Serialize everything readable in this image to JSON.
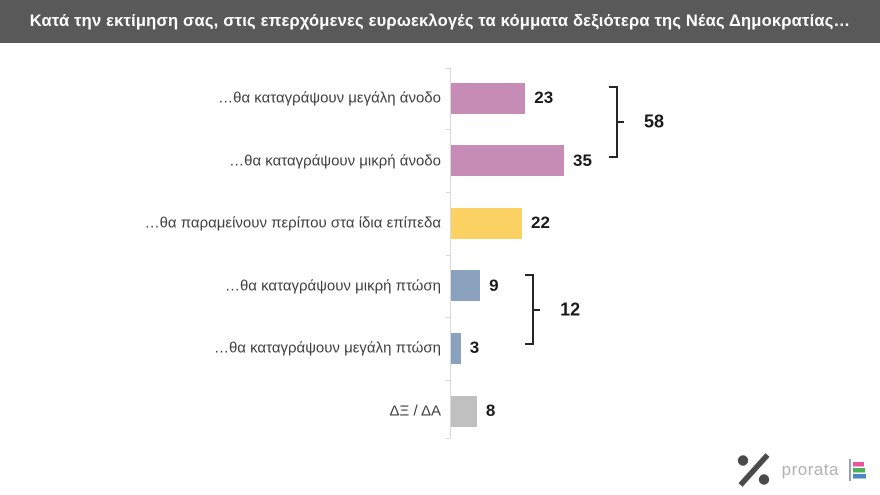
{
  "header": {
    "title": "Κατά την εκτίμηση σας, στις επερχόμενες ευρωεκλογές τα κόμματα δεξιότερα της Νέας Δημοκρατίας…"
  },
  "chart_data": {
    "type": "bar",
    "orientation": "horizontal",
    "title": "Κατά την εκτίμηση σας, στις επερχόμενες ευρωεκλογές τα κόμματα δεξιότερα της Νέας Δημοκρατίας…",
    "categories": [
      "…θα καταγράψουν μεγάλη άνοδο",
      "…θα καταγράψουν μικρή άνοδο",
      "…θα παραμείνουν περίπου στα ίδια επίπεδα",
      "…θα καταγράψουν μικρή πτώση",
      "…θα καταγράψουν μεγάλη πτώση",
      "ΔΞ / ΔΑ"
    ],
    "values": [
      23,
      35,
      22,
      9,
      3,
      8
    ],
    "bar_colors": [
      "#c78cb5",
      "#c78cb5",
      "#fcd164",
      "#8ba2be",
      "#8ba2be",
      "#c0c0c0"
    ],
    "value_labels_shown": true,
    "xlim": [
      0,
      40
    ],
    "grid": false,
    "legend": "none",
    "groups": [
      {
        "label": "58",
        "from": 0,
        "to": 1
      },
      {
        "label": "12",
        "from": 3,
        "to": 4
      }
    ]
  },
  "colors": {
    "header_bg": "#595959",
    "header_text": "#ffffff",
    "axis_line": "#d9d9d9",
    "category_text": "#3f3f3f",
    "value_text": "#1a1a1a",
    "bracket": "#262626"
  },
  "logo": {
    "brand": "prorata",
    "percent_icon": "percent-icon",
    "bar_chart_icon": "bar-chart-icon",
    "percent_color": "#4a4a4a",
    "brand_text_color": "#b2b2b2",
    "icon_bar_colors": [
      "#e8559d",
      "#4cb05a",
      "#4a86c8"
    ]
  }
}
